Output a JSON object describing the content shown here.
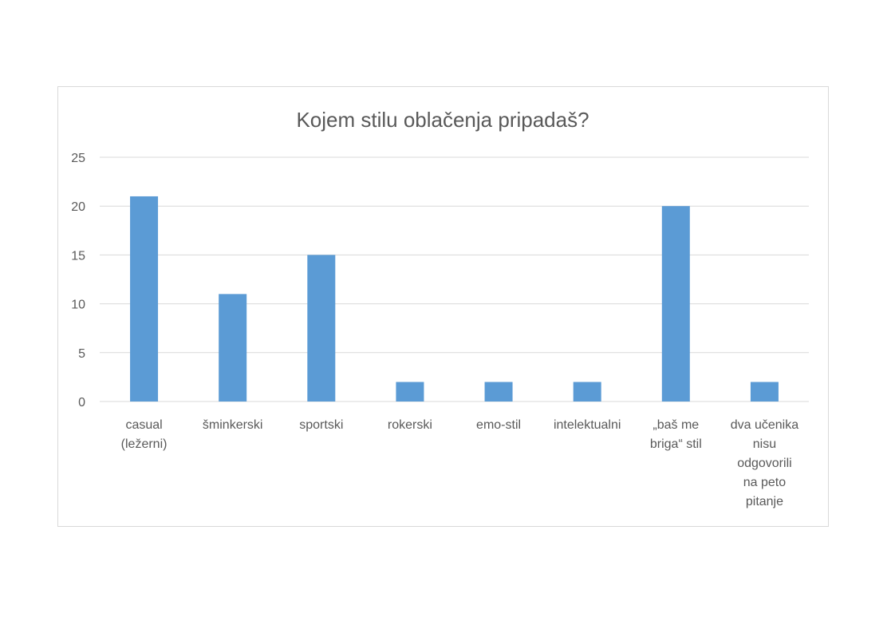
{
  "chart_data": {
    "type": "bar",
    "title": "Kojem stilu oblačenja pripadaš?",
    "xlabel": "",
    "ylabel": "",
    "ylim": [
      0,
      25
    ],
    "yticks": [
      0,
      5,
      10,
      15,
      20,
      25
    ],
    "grid": true,
    "legend": "none",
    "bar_color": "#5b9bd5",
    "categories": [
      [
        "casual",
        "(ležerni)"
      ],
      [
        "šminkerski"
      ],
      [
        "sportski"
      ],
      [
        "rokerski"
      ],
      [
        "emo-stil"
      ],
      [
        "intelektualni"
      ],
      [
        "„baš me",
        "briga“ stil"
      ],
      [
        "dva učenika",
        "nisu",
        "odgovorili",
        "na peto",
        "pitanje"
      ]
    ],
    "values": [
      21,
      11,
      15,
      2,
      2,
      2,
      20,
      2
    ]
  }
}
